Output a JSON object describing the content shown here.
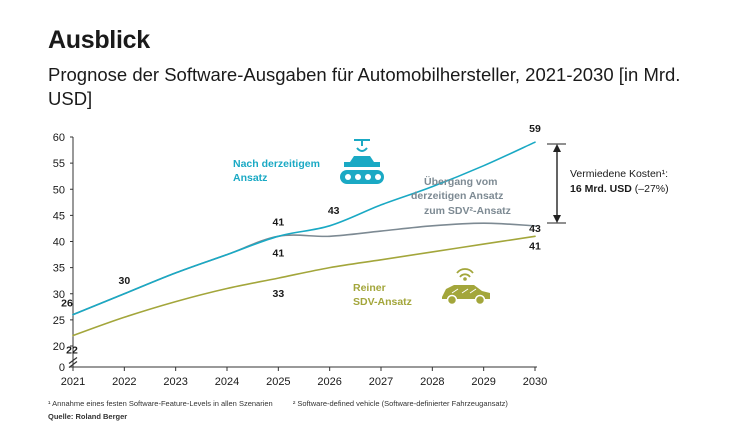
{
  "header": {
    "title": "Ausblick",
    "subtitle": "Prognose der Software-Ausgaben für Automobilhersteller, 2021-2030 [in Mrd. USD]"
  },
  "chart_data": {
    "type": "line",
    "x": [
      2021,
      2022,
      2023,
      2024,
      2025,
      2026,
      2027,
      2028,
      2029,
      2030
    ],
    "xlim": [
      2021,
      2030
    ],
    "ylim": [
      0,
      60
    ],
    "yticks": [
      0,
      20,
      25,
      30,
      35,
      40,
      45,
      50,
      55,
      60
    ],
    "axis_break": [
      0,
      20
    ],
    "grid": false,
    "series": [
      {
        "name": "Nach derzeitigem Ansatz",
        "color": "#1aa9c4",
        "values": [
          26,
          30,
          34,
          37.5,
          41,
          43,
          47,
          50.5,
          54.5,
          59
        ],
        "labels": [
          {
            "x": 2021,
            "text": "26"
          },
          {
            "x": 2022,
            "text": "30"
          },
          {
            "x": 2025,
            "text": "41",
            "pos": "above"
          },
          {
            "x": 2026,
            "text": "43"
          },
          {
            "x": 2030,
            "text": "59"
          }
        ]
      },
      {
        "name": "Übergang vom derzeitigen Ansatz zum SDV²-Ansatz",
        "color": "#7d8a93",
        "values": [
          26,
          30,
          34,
          37.5,
          41,
          41,
          42,
          43,
          43.5,
          43
        ],
        "labels": [
          {
            "x": 2025,
            "text": "41",
            "pos": "below"
          },
          {
            "x": 2030,
            "text": "43"
          }
        ]
      },
      {
        "name": "Reiner SDV-Ansatz",
        "color": "#a3a63b",
        "values": [
          22,
          25.5,
          28.5,
          31,
          33,
          35,
          36.5,
          38,
          39.5,
          41
        ],
        "labels": [
          {
            "x": 2021,
            "text": "22"
          },
          {
            "x": 2025,
            "text": "33"
          },
          {
            "x": 2030,
            "text": "41"
          }
        ]
      }
    ],
    "annotations": {
      "series_label_current": [
        "Nach derzeitigem",
        "Ansatz"
      ],
      "series_label_transition": [
        "Übergang vom",
        "derzeitigen Ansatz",
        "zum SDV²-Ansatz"
      ],
      "series_label_sdv": [
        "Reiner",
        "SDV-Ansatz"
      ],
      "avoided_costs_line1": "Vermiedene Kosten¹:",
      "avoided_costs_value": "16 Mrd. USD",
      "avoided_costs_pct": "(–27%)"
    }
  },
  "footnotes": {
    "note1": "¹ Annahme eines festen Software-Feature-Levels in allen Szenarien",
    "note2": "² Software-defined vehicle (Software-definierter Fahrzeugansatz)",
    "source": "Quelle: Roland Berger"
  },
  "colors": {
    "current": "#1aa9c4",
    "transition": "#7d8a93",
    "sdv": "#a3a63b",
    "axis": "#333333"
  },
  "icons": [
    "factory-conveyor-icon",
    "connected-car-icon",
    "double-arrow-icon"
  ]
}
